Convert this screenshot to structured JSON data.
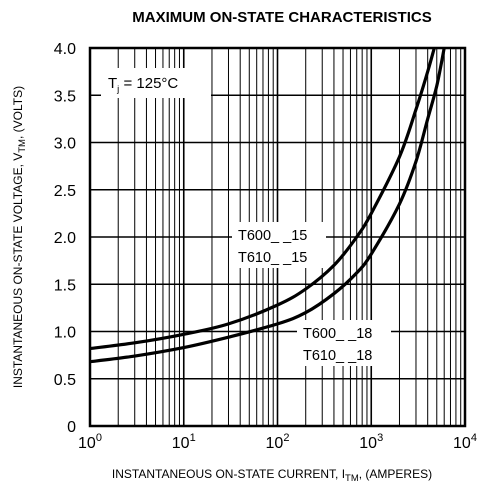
{
  "chart_data": {
    "type": "line",
    "title": "MAXIMUM ON-STATE CHARACTERISTICS",
    "xlabel": {
      "prefix": "INSTANTANEOUS ON-STATE CURRENT, I",
      "sub": "TM",
      "suffix": ", (AMPERES)"
    },
    "ylabel": {
      "prefix": "INSTANTANEOUS ON-STATE VOLTAGE, V",
      "sub": "TM",
      "suffix": ", (VOLTS)"
    },
    "xscale": "log",
    "xlim": [
      1,
      10000
    ],
    "ylim": [
      0,
      4.0
    ],
    "grid": true,
    "x_ticks": [
      {
        "base": "10",
        "exp": "0"
      },
      {
        "base": "10",
        "exp": "1"
      },
      {
        "base": "10",
        "exp": "2"
      },
      {
        "base": "10",
        "exp": "3"
      },
      {
        "base": "10",
        "exp": "4"
      }
    ],
    "y_ticks": [
      "0",
      "0.5",
      "1.0",
      "1.5",
      "2.0",
      "2.5",
      "3.0",
      "3.5",
      "4.0"
    ],
    "annotation": {
      "prefix": "T",
      "sub": "j",
      "suffix": " = 125°C"
    },
    "series": [
      {
        "labels": [
          "T600_ _15",
          "T610_ _15"
        ],
        "points": [
          [
            1,
            0.82
          ],
          [
            3,
            0.88
          ],
          [
            10,
            0.97
          ],
          [
            30,
            1.08
          ],
          [
            100,
            1.28
          ],
          [
            200,
            1.45
          ],
          [
            400,
            1.7
          ],
          [
            700,
            2.0
          ],
          [
            1000,
            2.25
          ],
          [
            2000,
            2.85
          ],
          [
            3000,
            3.35
          ],
          [
            4000,
            3.75
          ],
          [
            4700,
            4.0
          ]
        ]
      },
      {
        "labels": [
          "T600_ _18",
          "T610_ _18"
        ],
        "points": [
          [
            1,
            0.68
          ],
          [
            3,
            0.74
          ],
          [
            10,
            0.83
          ],
          [
            30,
            0.94
          ],
          [
            100,
            1.08
          ],
          [
            200,
            1.2
          ],
          [
            400,
            1.4
          ],
          [
            700,
            1.62
          ],
          [
            1000,
            1.82
          ],
          [
            2000,
            2.35
          ],
          [
            3000,
            2.8
          ],
          [
            4000,
            3.25
          ],
          [
            5000,
            3.6
          ],
          [
            6000,
            4.0
          ]
        ]
      }
    ]
  }
}
